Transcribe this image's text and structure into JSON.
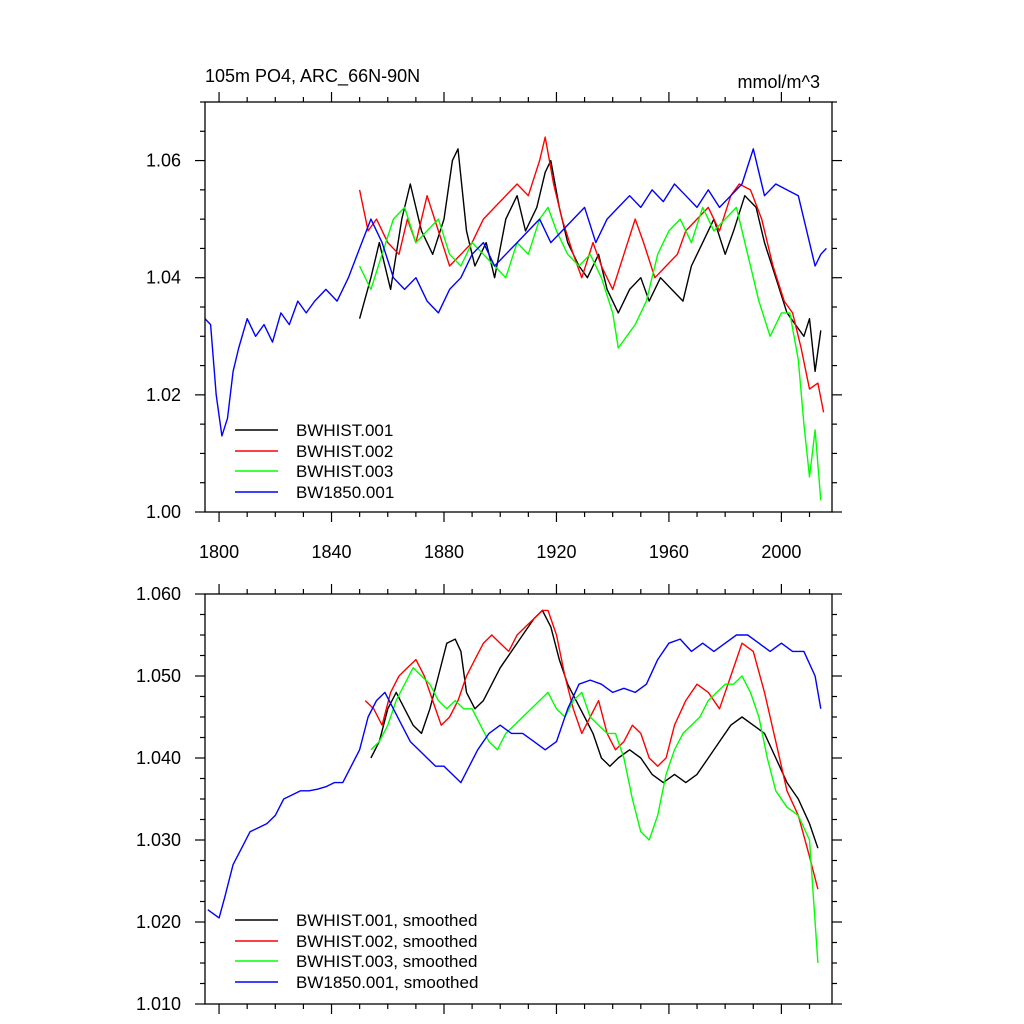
{
  "chart_data": [
    {
      "type": "line",
      "title_left": "105m PO4, ARC_66N-90N",
      "title_right": "mmol/m^3",
      "xlim": [
        1795,
        2018
      ],
      "ylim": [
        1.0,
        1.07
      ],
      "xticks": [
        1800,
        1840,
        1880,
        1920,
        1960,
        2000
      ],
      "xtick_labels": [
        "1800",
        "1840",
        "1880",
        "1920",
        "1960",
        "2000"
      ],
      "yticks": [
        1.0,
        1.02,
        1.04,
        1.06
      ],
      "ytick_labels": [
        "1.00",
        "1.02",
        "1.04",
        "1.06"
      ],
      "legend_position": "bottom-left",
      "series": [
        {
          "name": "BWHIST.001",
          "color": "#000000",
          "x": [
            1850,
            1854,
            1857,
            1861,
            1865,
            1868,
            1872,
            1876,
            1880,
            1883,
            1885,
            1888,
            1891,
            1895,
            1898,
            1902,
            1906,
            1909,
            1913,
            1916,
            1918,
            1921,
            1924,
            1928,
            1931,
            1935,
            1938,
            1942,
            1946,
            1950,
            1953,
            1957,
            1961,
            1965,
            1968,
            1972,
            1976,
            1980,
            1983,
            1987,
            1991,
            1994,
            1998,
            2002,
            2005,
            2008,
            2010,
            2012,
            2014
          ],
          "values": [
            1.033,
            1.04,
            1.046,
            1.038,
            1.05,
            1.056,
            1.048,
            1.044,
            1.05,
            1.06,
            1.062,
            1.048,
            1.042,
            1.046,
            1.04,
            1.05,
            1.054,
            1.048,
            1.052,
            1.058,
            1.06,
            1.052,
            1.046,
            1.042,
            1.04,
            1.044,
            1.038,
            1.034,
            1.038,
            1.04,
            1.036,
            1.04,
            1.038,
            1.036,
            1.042,
            1.046,
            1.05,
            1.044,
            1.048,
            1.054,
            1.052,
            1.046,
            1.04,
            1.034,
            1.032,
            1.03,
            1.033,
            1.024,
            1.031
          ]
        },
        {
          "name": "BWHIST.002",
          "color": "#ff0000",
          "x": [
            1850,
            1853,
            1856,
            1860,
            1864,
            1867,
            1870,
            1874,
            1878,
            1882,
            1886,
            1890,
            1894,
            1898,
            1902,
            1906,
            1910,
            1914,
            1916,
            1919,
            1922,
            1926,
            1929,
            1933,
            1936,
            1940,
            1944,
            1948,
            1951,
            1955,
            1959,
            1963,
            1966,
            1970,
            1974,
            1978,
            1982,
            1985,
            1989,
            1993,
            1997,
            2001,
            2004,
            2007,
            2010,
            2013,
            2015
          ],
          "values": [
            1.055,
            1.048,
            1.05,
            1.046,
            1.044,
            1.05,
            1.046,
            1.054,
            1.048,
            1.042,
            1.044,
            1.046,
            1.05,
            1.052,
            1.054,
            1.056,
            1.054,
            1.06,
            1.064,
            1.056,
            1.05,
            1.044,
            1.04,
            1.046,
            1.042,
            1.038,
            1.044,
            1.05,
            1.046,
            1.04,
            1.042,
            1.044,
            1.048,
            1.05,
            1.052,
            1.048,
            1.054,
            1.056,
            1.055,
            1.05,
            1.042,
            1.036,
            1.034,
            1.028,
            1.021,
            1.022,
            1.017
          ]
        },
        {
          "name": "BWHIST.003",
          "color": "#00ff00",
          "x": [
            1850,
            1854,
            1858,
            1862,
            1866,
            1870,
            1874,
            1878,
            1882,
            1886,
            1890,
            1894,
            1898,
            1902,
            1906,
            1910,
            1914,
            1917,
            1920,
            1924,
            1928,
            1932,
            1936,
            1940,
            1942,
            1945,
            1948,
            1952,
            1956,
            1960,
            1964,
            1968,
            1972,
            1976,
            1980,
            1984,
            1988,
            1992,
            1996,
            2000,
            2003,
            2006,
            2008,
            2010,
            2012,
            2014
          ],
          "values": [
            1.042,
            1.038,
            1.044,
            1.05,
            1.052,
            1.046,
            1.048,
            1.05,
            1.044,
            1.042,
            1.046,
            1.044,
            1.042,
            1.04,
            1.046,
            1.044,
            1.05,
            1.052,
            1.048,
            1.044,
            1.042,
            1.044,
            1.04,
            1.034,
            1.028,
            1.03,
            1.032,
            1.036,
            1.044,
            1.048,
            1.05,
            1.046,
            1.052,
            1.048,
            1.05,
            1.052,
            1.044,
            1.036,
            1.03,
            1.034,
            1.034,
            1.026,
            1.015,
            1.006,
            1.014,
            1.002
          ]
        },
        {
          "name": "BW1850.001",
          "color": "#0000ff",
          "x": [
            1795,
            1797,
            1799,
            1801,
            1803,
            1805,
            1807,
            1810,
            1813,
            1816,
            1819,
            1822,
            1825,
            1828,
            1831,
            1834,
            1838,
            1842,
            1846,
            1850,
            1854,
            1858,
            1862,
            1866,
            1870,
            1874,
            1878,
            1882,
            1886,
            1890,
            1894,
            1898,
            1902,
            1906,
            1910,
            1914,
            1918,
            1922,
            1926,
            1930,
            1934,
            1938,
            1942,
            1946,
            1950,
            1954,
            1958,
            1962,
            1966,
            1970,
            1974,
            1978,
            1982,
            1986,
            1990,
            1994,
            1998,
            2002,
            2006,
            2010,
            2012,
            2014,
            2016
          ],
          "values": [
            1.033,
            1.032,
            1.02,
            1.013,
            1.016,
            1.024,
            1.028,
            1.033,
            1.03,
            1.032,
            1.029,
            1.034,
            1.032,
            1.036,
            1.034,
            1.036,
            1.038,
            1.036,
            1.04,
            1.045,
            1.05,
            1.046,
            1.04,
            1.038,
            1.04,
            1.036,
            1.034,
            1.038,
            1.04,
            1.044,
            1.046,
            1.042,
            1.044,
            1.046,
            1.048,
            1.05,
            1.046,
            1.048,
            1.05,
            1.052,
            1.046,
            1.05,
            1.052,
            1.054,
            1.052,
            1.055,
            1.053,
            1.056,
            1.054,
            1.052,
            1.055,
            1.052,
            1.054,
            1.056,
            1.062,
            1.054,
            1.056,
            1.055,
            1.054,
            1.046,
            1.042,
            1.044,
            1.045
          ]
        }
      ]
    },
    {
      "type": "line",
      "xlim": [
        1795,
        2018
      ],
      "ylim": [
        1.01,
        1.06
      ],
      "xticks": [
        1800,
        1840,
        1880,
        1920,
        1960,
        2000
      ],
      "yticks": [
        1.01,
        1.02,
        1.03,
        1.04,
        1.05,
        1.06
      ],
      "ytick_labels": [
        "1.010",
        "1.020",
        "1.030",
        "1.040",
        "1.050",
        "1.060"
      ],
      "legend_position": "bottom-left",
      "series": [
        {
          "name": "BWHIST.001, smoothed",
          "color": "#000000",
          "x": [
            1854,
            1857,
            1860,
            1863,
            1866,
            1869,
            1872,
            1875,
            1878,
            1881,
            1884,
            1886,
            1888,
            1891,
            1894,
            1897,
            1900,
            1904,
            1908,
            1912,
            1915,
            1918,
            1921,
            1924,
            1927,
            1930,
            1933,
            1936,
            1939,
            1942,
            1946,
            1950,
            1954,
            1958,
            1962,
            1966,
            1970,
            1974,
            1978,
            1982,
            1986,
            1990,
            1994,
            1998,
            2002,
            2006,
            2010,
            2013
          ],
          "values": [
            1.04,
            1.042,
            1.046,
            1.048,
            1.046,
            1.044,
            1.043,
            1.046,
            1.05,
            1.054,
            1.0545,
            1.053,
            1.048,
            1.046,
            1.047,
            1.049,
            1.051,
            1.053,
            1.055,
            1.057,
            1.058,
            1.056,
            1.052,
            1.049,
            1.047,
            1.045,
            1.043,
            1.04,
            1.039,
            1.04,
            1.041,
            1.04,
            1.038,
            1.037,
            1.038,
            1.037,
            1.038,
            1.04,
            1.042,
            1.044,
            1.045,
            1.044,
            1.043,
            1.04,
            1.037,
            1.035,
            1.032,
            1.029
          ]
        },
        {
          "name": "BWHIST.002, smoothed",
          "color": "#ff0000",
          "x": [
            1852,
            1855,
            1858,
            1861,
            1864,
            1867,
            1870,
            1873,
            1876,
            1879,
            1882,
            1885,
            1888,
            1891,
            1894,
            1897,
            1900,
            1903,
            1906,
            1909,
            1912,
            1915,
            1917,
            1920,
            1923,
            1926,
            1929,
            1932,
            1935,
            1938,
            1941,
            1944,
            1947,
            1950,
            1953,
            1956,
            1959,
            1962,
            1966,
            1970,
            1974,
            1978,
            1982,
            1986,
            1990,
            1994,
            1998,
            2002,
            2006,
            2010,
            2013
          ],
          "values": [
            1.047,
            1.046,
            1.044,
            1.048,
            1.05,
            1.051,
            1.052,
            1.05,
            1.047,
            1.044,
            1.045,
            1.047,
            1.05,
            1.052,
            1.054,
            1.055,
            1.054,
            1.053,
            1.055,
            1.056,
            1.057,
            1.058,
            1.058,
            1.055,
            1.05,
            1.046,
            1.043,
            1.045,
            1.047,
            1.043,
            1.041,
            1.042,
            1.044,
            1.043,
            1.04,
            1.039,
            1.04,
            1.044,
            1.047,
            1.049,
            1.048,
            1.046,
            1.05,
            1.054,
            1.053,
            1.048,
            1.042,
            1.036,
            1.033,
            1.028,
            1.024
          ]
        },
        {
          "name": "BWHIST.003, smoothed",
          "color": "#00ff00",
          "x": [
            1854,
            1857,
            1860,
            1863,
            1866,
            1869,
            1872,
            1875,
            1878,
            1881,
            1884,
            1887,
            1890,
            1893,
            1896,
            1899,
            1902,
            1905,
            1908,
            1911,
            1914,
            1917,
            1920,
            1923,
            1926,
            1929,
            1932,
            1935,
            1938,
            1941,
            1944,
            1947,
            1950,
            1953,
            1956,
            1959,
            1962,
            1965,
            1968,
            1971,
            1974,
            1977,
            1980,
            1983,
            1986,
            1989,
            1992,
            1995,
            1998,
            2002,
            2006,
            2010,
            2013
          ],
          "values": [
            1.041,
            1.042,
            1.044,
            1.047,
            1.049,
            1.051,
            1.05,
            1.049,
            1.047,
            1.046,
            1.047,
            1.046,
            1.046,
            1.044,
            1.042,
            1.041,
            1.043,
            1.044,
            1.045,
            1.046,
            1.047,
            1.048,
            1.046,
            1.045,
            1.047,
            1.048,
            1.045,
            1.044,
            1.043,
            1.043,
            1.04,
            1.035,
            1.031,
            1.03,
            1.033,
            1.038,
            1.041,
            1.043,
            1.044,
            1.045,
            1.047,
            1.048,
            1.049,
            1.049,
            1.05,
            1.048,
            1.045,
            1.04,
            1.036,
            1.034,
            1.033,
            1.03,
            1.015
          ]
        },
        {
          "name": "BW1850.001, smoothed",
          "color": "#0000ff",
          "x": [
            1796,
            1798,
            1800,
            1802,
            1805,
            1808,
            1811,
            1814,
            1817,
            1820,
            1823,
            1826,
            1829,
            1832,
            1835,
            1838,
            1841,
            1844,
            1847,
            1850,
            1853,
            1856,
            1859,
            1862,
            1865,
            1868,
            1871,
            1874,
            1877,
            1880,
            1883,
            1886,
            1889,
            1892,
            1896,
            1900,
            1904,
            1908,
            1912,
            1916,
            1920,
            1924,
            1928,
            1932,
            1936,
            1940,
            1944,
            1948,
            1952,
            1956,
            1960,
            1964,
            1968,
            1972,
            1976,
            1980,
            1984,
            1988,
            1992,
            1996,
            2000,
            2004,
            2008,
            2012,
            2014
          ],
          "values": [
            1.0215,
            1.021,
            1.0205,
            1.023,
            1.027,
            1.029,
            1.031,
            1.0315,
            1.032,
            1.033,
            1.035,
            1.0355,
            1.036,
            1.036,
            1.0362,
            1.0365,
            1.037,
            1.037,
            1.039,
            1.041,
            1.045,
            1.047,
            1.048,
            1.046,
            1.044,
            1.042,
            1.041,
            1.04,
            1.039,
            1.039,
            1.038,
            1.037,
            1.039,
            1.041,
            1.043,
            1.044,
            1.043,
            1.043,
            1.042,
            1.041,
            1.042,
            1.046,
            1.049,
            1.0495,
            1.049,
            1.048,
            1.0485,
            1.048,
            1.049,
            1.052,
            1.054,
            1.0545,
            1.053,
            1.054,
            1.053,
            1.054,
            1.055,
            1.055,
            1.054,
            1.053,
            1.054,
            1.053,
            1.053,
            1.05,
            1.046
          ]
        }
      ]
    }
  ]
}
